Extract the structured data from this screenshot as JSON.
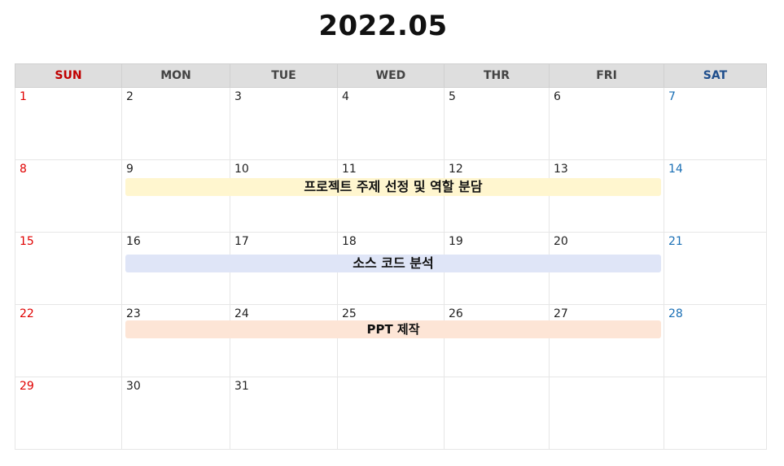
{
  "header": {
    "title": "2022.05"
  },
  "weekdays": [
    "SUN",
    "MON",
    "TUE",
    "WED",
    "THR",
    "FRI",
    "SAT"
  ],
  "weeks": [
    [
      "1",
      "2",
      "3",
      "4",
      "5",
      "6",
      "7"
    ],
    [
      "8",
      "9",
      "10",
      "11",
      "12",
      "13",
      "14"
    ],
    [
      "15",
      "16",
      "17",
      "18",
      "19",
      "20",
      "21"
    ],
    [
      "22",
      "23",
      "24",
      "25",
      "26",
      "27",
      "28"
    ],
    [
      "29",
      "30",
      "31",
      "",
      "",
      "",
      ""
    ]
  ],
  "events": [
    {
      "label": "프로젝트 주제 선정 및 역할 분담",
      "start_day": 9,
      "end_day": 13,
      "color": "#fff6cf"
    },
    {
      "label": "소스 코드 분석",
      "start_day": 16,
      "end_day": 20,
      "color": "#dfe5f7"
    },
    {
      "label": "PPT 제작",
      "start_day": 23,
      "end_day": 27,
      "color": "#fde5d6"
    }
  ],
  "colors": {
    "sunday": "#e00000",
    "saturday": "#1a6fb5",
    "header_bg": "#dedede"
  }
}
